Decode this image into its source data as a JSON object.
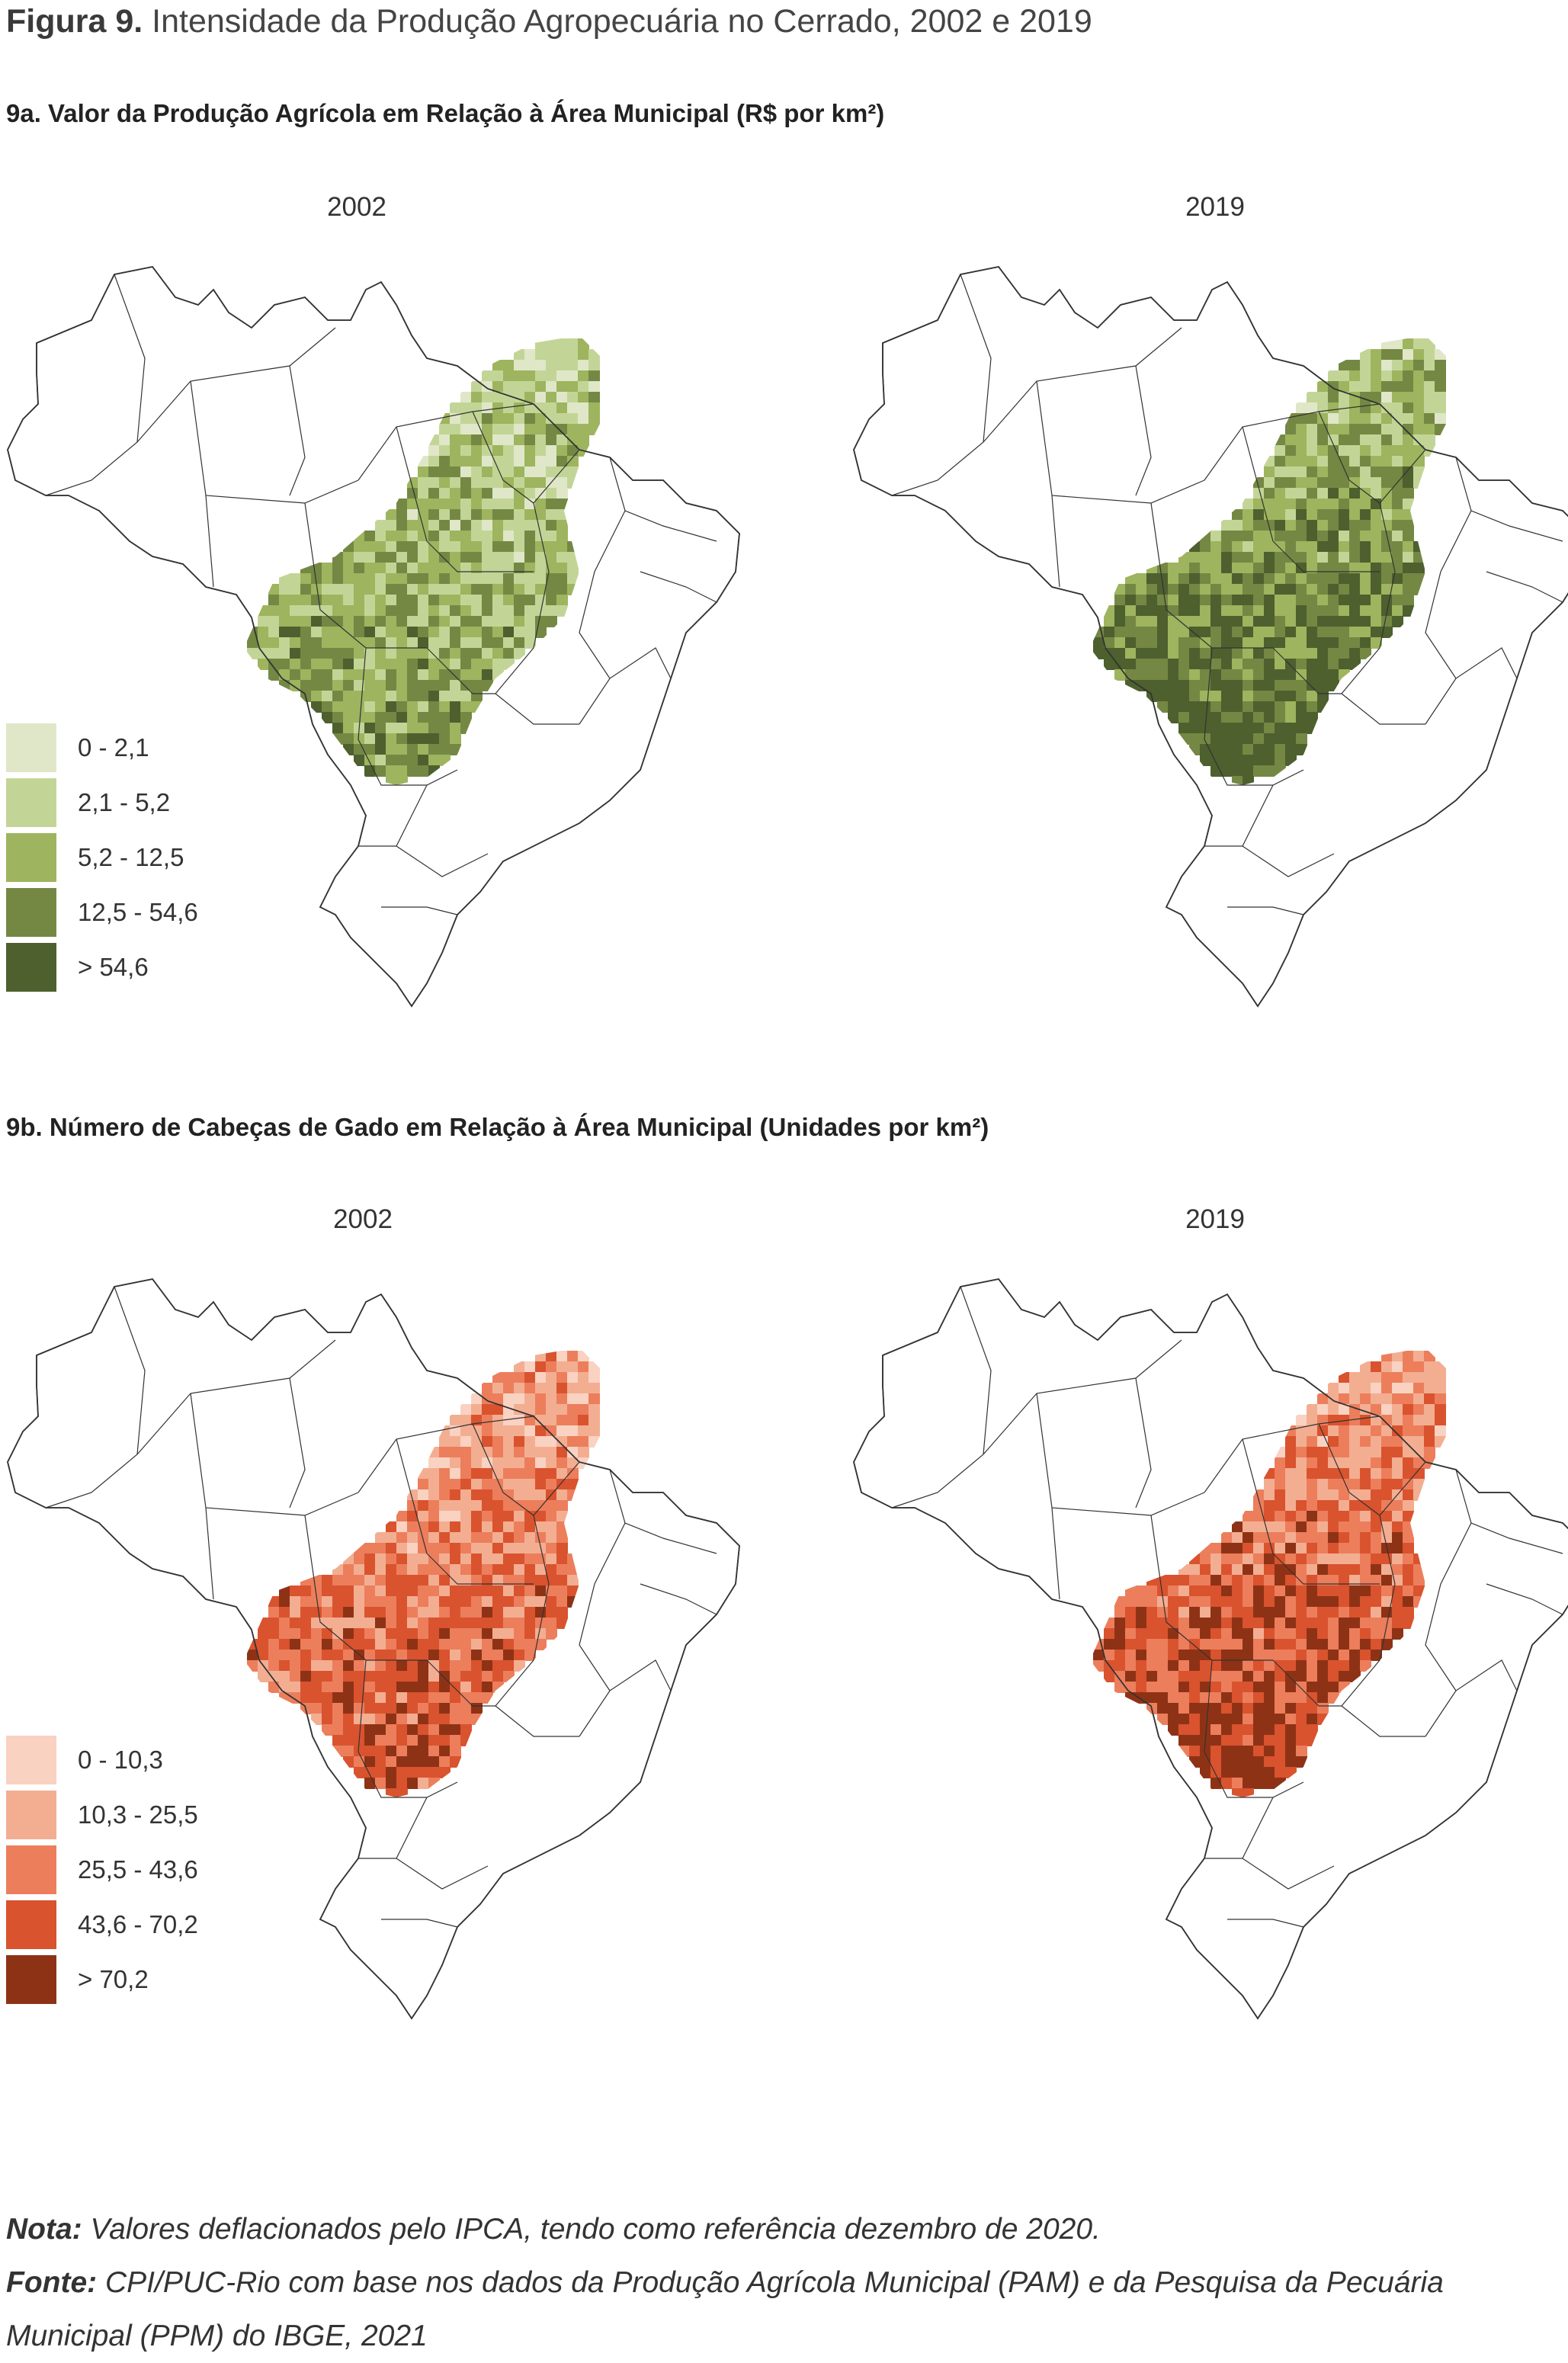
{
  "figure": {
    "label": "Figura 9.",
    "title": "Intensidade da Produção Agropecuária no Cerrado, 2002 e 2019"
  },
  "panel_a": {
    "title": "9a. Valor da Produção Agrícola em Relação à Área Municipal (R$ por km²)",
    "years": [
      "2002",
      "2019"
    ],
    "legend": [
      {
        "label": "0 - 2,1",
        "color": "#dfe7c8"
      },
      {
        "label": "2,1 - 5,2",
        "color": "#c3d596"
      },
      {
        "label": "5,2 - 12,5",
        "color": "#9eb45e"
      },
      {
        "label": "12,5 - 54,6",
        "color": "#748844"
      },
      {
        "label": "> 54,6",
        "color": "#4d602e"
      }
    ]
  },
  "panel_b": {
    "title": "9b. Número de Cabeças de Gado em Relação à Área Municipal (Unidades por km²)",
    "years": [
      "2002",
      "2019"
    ],
    "legend": [
      {
        "label": "0 - 10,3",
        "color": "#f9d2c2"
      },
      {
        "label": "10,3 - 25,5",
        "color": "#f3ae92"
      },
      {
        "label": "25,5 - 43,6",
        "color": "#ec7e5c"
      },
      {
        "label": "43,6 - 70,2",
        "color": "#d9532e"
      },
      {
        "label": "> 70,2",
        "color": "#8e3216"
      }
    ]
  },
  "notes": {
    "nota_label": "Nota:",
    "nota_text": "Valores deflacionados pelo IPCA, tendo como referência dezembro de 2020.",
    "fonte_label": "Fonte:",
    "fonte_text": "CPI/PUC-Rio com base nos dados da Produção Agrícola Municipal (PAM) e da Pesquisa da Pecuária Municipal (PPM) do IBGE, 2021"
  }
}
